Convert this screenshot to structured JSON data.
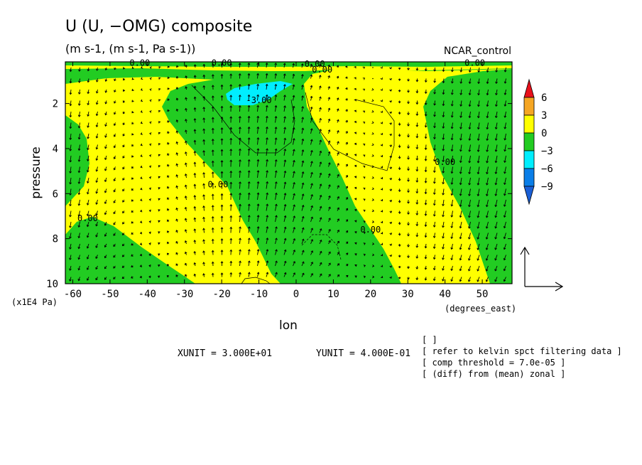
{
  "chart_data": {
    "type": "heatmap",
    "title": "U (U, −OMG) composite",
    "subtitle": "(m s-1, (m s-1, Pa s-1))",
    "experiment": "NCAR_control",
    "xlabel": "lon",
    "ylabel": "pressure",
    "xunits": "(degrees_east)",
    "yunits": "(x1E4 Pa)",
    "xlim": [
      -62,
      58
    ],
    "ylim": [
      10,
      0.15
    ],
    "x_ticks": [
      "-60",
      "-50",
      "-40",
      "-30",
      "-20",
      "-10",
      "0",
      "10",
      "20",
      "30",
      "40",
      "50"
    ],
    "y_ticks": [
      "2",
      "4",
      "6",
      "8",
      "10"
    ],
    "colorbar": {
      "levels": [
        "6",
        "3",
        "0",
        "−3",
        "−6",
        "−9"
      ],
      "colors": [
        "#e8101a",
        "#f5a623",
        "#ffff00",
        "#22cc22",
        "#00eeff",
        "#0a7ee8",
        "#1a5fd6"
      ]
    },
    "contour_labels": [
      {
        "text": "0.00",
        "x": -42,
        "y": 0.2
      },
      {
        "text": "0.00",
        "x": -20,
        "y": 0.2
      },
      {
        "text": "0.00",
        "x": 5,
        "y": 0.25
      },
      {
        "text": "0.00",
        "x": 7,
        "y": 0.5
      },
      {
        "text": "0.00",
        "x": 48,
        "y": 0.2
      },
      {
        "text": "-3.00",
        "x": -10,
        "y": 1.85
      },
      {
        "text": "0.00",
        "x": -21,
        "y": 5.6
      },
      {
        "text": "0.00",
        "x": 40,
        "y": 4.6
      },
      {
        "text": "0.00",
        "x": 20,
        "y": 7.6
      },
      {
        "text": "0.00",
        "x": -56,
        "y": 7.1
      }
    ],
    "vector_reference": {
      "xunit": "XUNIT = 3.000E+01",
      "yunit": "YUNIT = 4.000E-01"
    }
  },
  "notes": [
    "[  ]",
    "[ refer to kelvin spct filtering data ]",
    "[ comp threshold = 7.0e-05 ]",
    "[ (diff) from (mean) zonal ]"
  ]
}
